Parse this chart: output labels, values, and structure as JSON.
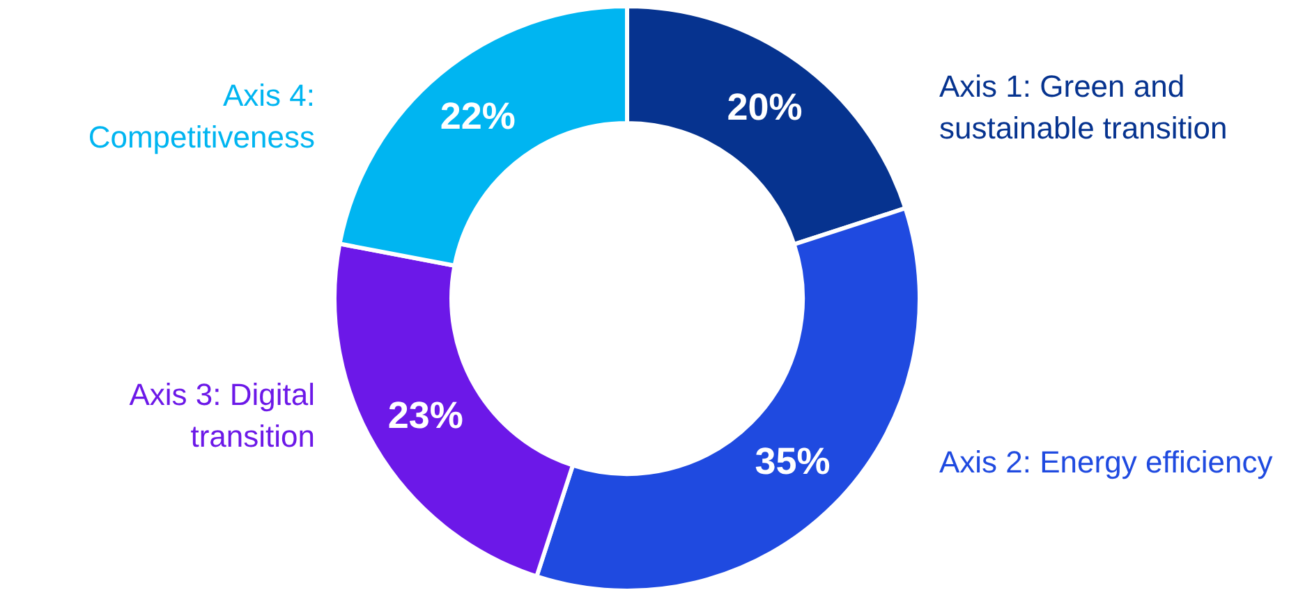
{
  "chart_data": {
    "type": "donut",
    "categories": [
      "Axis 1: Green and sustainable transition",
      "Axis 2: Energy efficiency",
      "Axis 3: Digital transition",
      "Axis 4: Competitiveness"
    ],
    "values": [
      20,
      35,
      23,
      22
    ],
    "colors": [
      "#06338f",
      "#1f4ae0",
      "#6c18e8",
      "#00b5f1"
    ],
    "value_labels": [
      "20%",
      "35%",
      "23%",
      "22%"
    ],
    "legend": false
  }
}
